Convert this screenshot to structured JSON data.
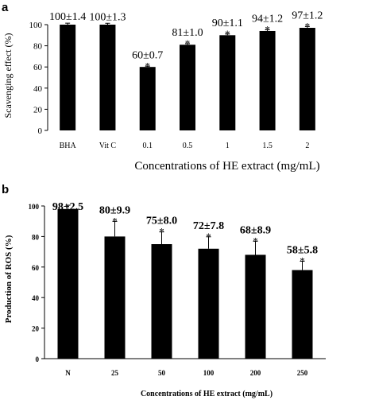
{
  "chart_data": [
    {
      "type": "bar",
      "panel_label": "a",
      "categories": [
        "BHA",
        "Vit C",
        "0.1",
        "0.5",
        "1",
        "1.5",
        "2"
      ],
      "values": [
        100,
        100,
        60,
        81,
        90,
        94,
        97
      ],
      "errors": [
        1.4,
        1.3,
        0.7,
        1.0,
        1.1,
        1.2,
        1.2
      ],
      "value_labels": [
        "100±1.4",
        "100±1.3",
        "60±0.7",
        "81±1.0",
        "90±1.1",
        "94±1.2",
        "97±1.2"
      ],
      "significance": [
        "",
        "",
        "*",
        "*",
        "*",
        "*",
        "*"
      ],
      "xlabel": "Concentrations of HE extract (mg/mL)",
      "ylabel": "Scavenging effect (%)",
      "ylim": [
        0,
        100
      ],
      "yticks": [
        0,
        20,
        40,
        60,
        80,
        100
      ],
      "grid": false,
      "bar_color": "#000000"
    },
    {
      "type": "bar",
      "panel_label": "b",
      "categories": [
        "N",
        "25",
        "50",
        "100",
        "200",
        "250"
      ],
      "values": [
        98,
        80,
        75,
        72,
        68,
        58
      ],
      "errors": [
        2.5,
        9.9,
        8.0,
        7.8,
        8.9,
        5.8
      ],
      "value_labels": [
        "98±2.5",
        "80±9.9",
        "75±8.0",
        "72±7.8",
        "68±8.9",
        "58±5.8"
      ],
      "significance": [
        "",
        "*",
        "*",
        "*",
        "*",
        "*"
      ],
      "xlabel": "Concentrations of HE extract (mg/mL)",
      "ylabel": "Production of ROS (%)",
      "ylim": [
        0,
        100
      ],
      "yticks": [
        0,
        20,
        40,
        60,
        80,
        100
      ],
      "grid": false,
      "bar_color": "#000000"
    }
  ]
}
